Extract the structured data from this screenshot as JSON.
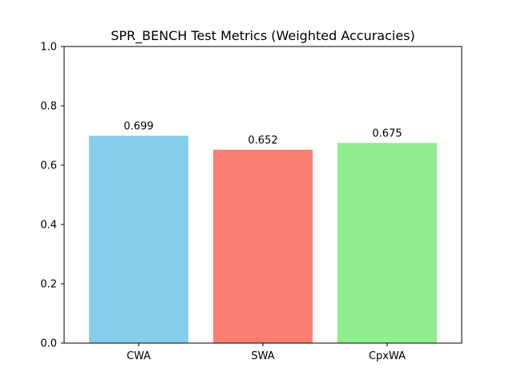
{
  "chart_data": {
    "type": "bar",
    "title": "SPR_BENCH Test Metrics (Weighted Accuracies)",
    "xlabel": "",
    "ylabel": "",
    "categories": [
      "CWA",
      "SWA",
      "CpxWA"
    ],
    "values": [
      0.699,
      0.652,
      0.675
    ],
    "value_labels": [
      "0.699",
      "0.652",
      "0.675"
    ],
    "colors": [
      "#87ceeb",
      "#fa8072",
      "#90ee90"
    ],
    "ylim": [
      0,
      1.0
    ],
    "yticks": [
      0.0,
      0.2,
      0.4,
      0.6,
      0.8,
      1.0
    ],
    "ytick_labels": [
      "0.0",
      "0.2",
      "0.4",
      "0.6",
      "0.8",
      "1.0"
    ],
    "grid": false,
    "legend": "none"
  }
}
